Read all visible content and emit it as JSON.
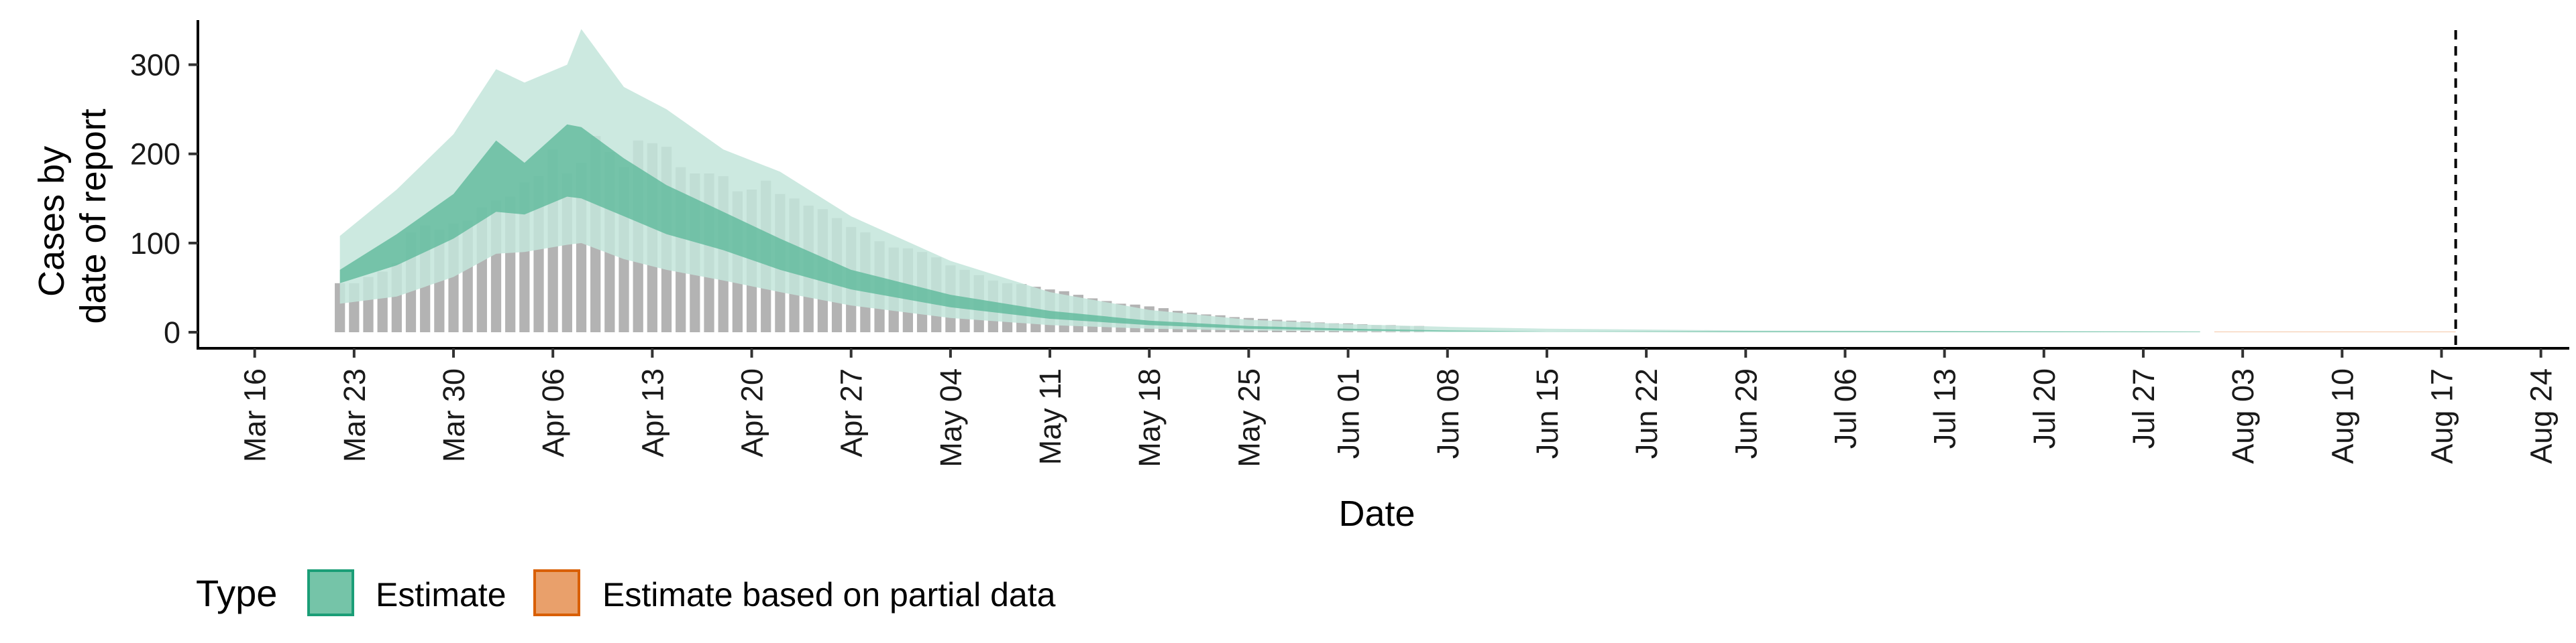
{
  "chart_data": {
    "type": "area",
    "xlabel": "Date",
    "ylabel_lines": [
      "Cases by",
      "date of report"
    ],
    "ylim": [
      -18,
      350
    ],
    "xlim": [
      "2020-03-12",
      "2020-08-26"
    ],
    "y_ticks": [
      0,
      100,
      200,
      300
    ],
    "x_ticks": [
      {
        "date": "2020-03-16",
        "label": "Mar 16"
      },
      {
        "date": "2020-03-23",
        "label": "Mar 23"
      },
      {
        "date": "2020-03-30",
        "label": "Mar 30"
      },
      {
        "date": "2020-04-06",
        "label": "Apr 06"
      },
      {
        "date": "2020-04-13",
        "label": "Apr 13"
      },
      {
        "date": "2020-04-20",
        "label": "Apr 20"
      },
      {
        "date": "2020-04-27",
        "label": "Apr 27"
      },
      {
        "date": "2020-05-04",
        "label": "May 04"
      },
      {
        "date": "2020-05-11",
        "label": "May 11"
      },
      {
        "date": "2020-05-18",
        "label": "May 18"
      },
      {
        "date": "2020-05-25",
        "label": "May 25"
      },
      {
        "date": "2020-06-01",
        "label": "Jun 01"
      },
      {
        "date": "2020-06-08",
        "label": "Jun 08"
      },
      {
        "date": "2020-06-15",
        "label": "Jun 15"
      },
      {
        "date": "2020-06-22",
        "label": "Jun 22"
      },
      {
        "date": "2020-06-29",
        "label": "Jun 29"
      },
      {
        "date": "2020-07-06",
        "label": "Jul 06"
      },
      {
        "date": "2020-07-13",
        "label": "Jul 13"
      },
      {
        "date": "2020-07-20",
        "label": "Jul 20"
      },
      {
        "date": "2020-07-27",
        "label": "Jul 27"
      },
      {
        "date": "2020-08-03",
        "label": "Aug 03"
      },
      {
        "date": "2020-08-10",
        "label": "Aug 10"
      },
      {
        "date": "2020-08-17",
        "label": "Aug 17"
      },
      {
        "date": "2020-08-24",
        "label": "Aug 24"
      }
    ],
    "vline_date": "2020-08-18",
    "legend": {
      "title": "Type",
      "position": "bottom-left",
      "entries": [
        {
          "label": "Estimate",
          "fill": "#75c4a8",
          "stroke": "#1b9e77"
        },
        {
          "label": "Estimate based on partial data",
          "fill": "#e9a06b",
          "stroke": "#d95f02"
        }
      ]
    },
    "colors": {
      "estimate_outer": "#c3e5da",
      "estimate_inner": "#5cb99a",
      "partial": "#f4c6a4",
      "observed_bars": "#b3b3b3",
      "vline": "#000000"
    },
    "observed_cases": {
      "start_date": "2020-03-22",
      "values": [
        55,
        55,
        62,
        68,
        78,
        112,
        120,
        115,
        122,
        125,
        140,
        148,
        152,
        168,
        175,
        205,
        178,
        190,
        220,
        202,
        185,
        215,
        212,
        208,
        185,
        178,
        178,
        175,
        158,
        160,
        170,
        155,
        150,
        142,
        138,
        128,
        118,
        112,
        102,
        95,
        94,
        90,
        84,
        75,
        70,
        64,
        58,
        55,
        54,
        51,
        48,
        46,
        42,
        38,
        35,
        32,
        31,
        29,
        27,
        24,
        22,
        20,
        19,
        17,
        16,
        15,
        14,
        13,
        12,
        11,
        10,
        10,
        9,
        8,
        8,
        7,
        7
      ]
    },
    "estimate_series": [
      {
        "date": "2020-03-22",
        "lower90": 32,
        "lower50": 55,
        "upper50": 70,
        "upper90": 108
      },
      {
        "date": "2020-03-26",
        "lower90": 40,
        "lower50": 75,
        "upper50": 110,
        "upper90": 160
      },
      {
        "date": "2020-03-30",
        "lower90": 62,
        "lower50": 105,
        "upper50": 155,
        "upper90": 222
      },
      {
        "date": "2020-04-02",
        "lower90": 88,
        "lower50": 135,
        "upper50": 215,
        "upper90": 295
      },
      {
        "date": "2020-04-04",
        "lower90": 90,
        "lower50": 132,
        "upper50": 190,
        "upper90": 280
      },
      {
        "date": "2020-04-07",
        "lower90": 98,
        "lower50": 152,
        "upper50": 233,
        "upper90": 300
      },
      {
        "date": "2020-04-08",
        "lower90": 100,
        "lower50": 150,
        "upper50": 230,
        "upper90": 340
      },
      {
        "date": "2020-04-11",
        "lower90": 82,
        "lower50": 130,
        "upper50": 195,
        "upper90": 275
      },
      {
        "date": "2020-04-14",
        "lower90": 70,
        "lower50": 110,
        "upper50": 165,
        "upper90": 250
      },
      {
        "date": "2020-04-18",
        "lower90": 58,
        "lower50": 92,
        "upper50": 135,
        "upper90": 205
      },
      {
        "date": "2020-04-22",
        "lower90": 45,
        "lower50": 70,
        "upper50": 105,
        "upper90": 180
      },
      {
        "date": "2020-04-27",
        "lower90": 30,
        "lower50": 48,
        "upper50": 70,
        "upper90": 130
      },
      {
        "date": "2020-05-04",
        "lower90": 16,
        "lower50": 28,
        "upper50": 42,
        "upper90": 80
      },
      {
        "date": "2020-05-11",
        "lower90": 8,
        "lower50": 15,
        "upper50": 24,
        "upper90": 45
      },
      {
        "date": "2020-05-18",
        "lower90": 4,
        "lower50": 8,
        "upper50": 13,
        "upper90": 25
      },
      {
        "date": "2020-05-25",
        "lower90": 2,
        "lower50": 4,
        "upper50": 7,
        "upper90": 14
      },
      {
        "date": "2020-06-01",
        "lower90": 1,
        "lower50": 2,
        "upper50": 4,
        "upper90": 9
      },
      {
        "date": "2020-06-08",
        "lower90": 0,
        "lower50": 1,
        "upper50": 2,
        "upper90": 6
      },
      {
        "date": "2020-06-15",
        "lower90": 0,
        "lower50": 1,
        "upper50": 1,
        "upper90": 4
      },
      {
        "date": "2020-06-29",
        "lower90": 0,
        "lower50": 0,
        "upper50": 1,
        "upper90": 2
      },
      {
        "date": "2020-07-13",
        "lower90": 0,
        "lower50": 0,
        "upper50": 1,
        "upper90": 1.5
      },
      {
        "date": "2020-07-31",
        "lower90": 0,
        "lower50": 0,
        "upper50": 0.5,
        "upper90": 1
      }
    ],
    "partial_series": [
      {
        "date": "2020-08-01",
        "lower": 0,
        "upper": 0.8
      },
      {
        "date": "2020-08-18",
        "lower": 0,
        "upper": 0.8
      }
    ]
  }
}
